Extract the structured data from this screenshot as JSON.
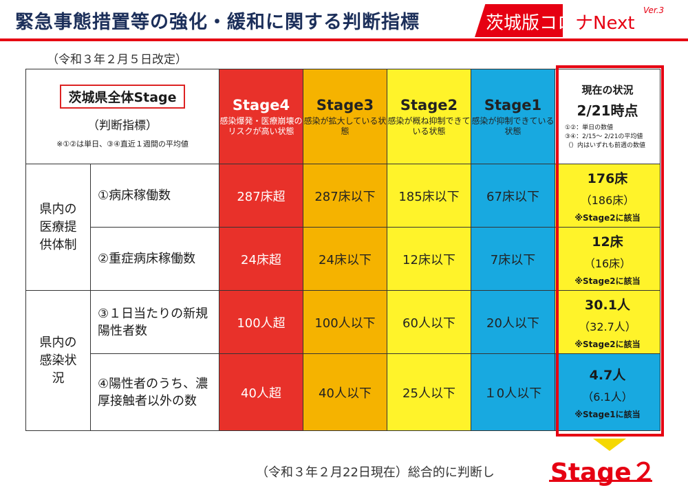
{
  "header": {
    "title": "緊急事態措置等の強化・緩和に関する判断指標",
    "brand_white": "茨城版コロ",
    "brand_red": "ナNext",
    "version": "Ver.3",
    "revised": "（令和３年２月５日改定）"
  },
  "table_header": {
    "overall_badge": "茨城県全体Stage",
    "sub": "（判断指標）",
    "note": "※①②は単日、③④直近１週間の平均値",
    "stages": [
      {
        "name": "Stage4",
        "desc": "感染爆発・医療崩壊のリスクが高い状態",
        "color": "#e8312a"
      },
      {
        "name": "Stage3",
        "desc": "感染が拡大している状態",
        "color": "#f5b300"
      },
      {
        "name": "Stage2",
        "desc": "感染が概ね抑制できている状態",
        "color": "#fff32a"
      },
      {
        "name": "Stage1",
        "desc": "感染が抑制できている状態",
        "color": "#18a9e0"
      }
    ],
    "current": {
      "title": "現在の状況",
      "date": "2/21時点",
      "note1": "①②：単日の数値",
      "note2": "③④：2/15～ 2/21の平均値",
      "note3": "（）内はいずれも前週の数値"
    }
  },
  "groups": [
    {
      "label": "県内の医療提供体制"
    },
    {
      "label": "県内の感染状況"
    }
  ],
  "rows": [
    {
      "indicator": "①病床稼働数",
      "s4": "287床超",
      "s3": "287床以下",
      "s2": "185床以下",
      "s1": "67床以下",
      "current": "176床",
      "prev": "（186床）",
      "judge": "※Stage2に該当"
    },
    {
      "indicator": "②重症病床稼働数",
      "s4": "24床超",
      "s3": "24床以下",
      "s2": "12床以下",
      "s1": "7床以下",
      "current": "12床",
      "prev": "（16床）",
      "judge": "※Stage2に該当"
    },
    {
      "indicator": "③１日当たりの新規陽性者数",
      "s4": "100人超",
      "s3": "100人以下",
      "s2": "60人以下",
      "s1": "20人以下",
      "current": "30.1人",
      "prev": "（32.7人）",
      "judge": "※Stage2に該当"
    },
    {
      "indicator": "④陽性者のうち、濃厚接触者以外の数",
      "s4": "40人超",
      "s3": "40人以下",
      "s2": "25人以下",
      "s1": "１0人以下",
      "current": "4.7人",
      "prev": "（6.1人）",
      "judge": "※Stage1に該当"
    }
  ],
  "footer": {
    "text": "（令和３年２月22日現在）総合的に判断し",
    "final_stage": "Stage２"
  }
}
